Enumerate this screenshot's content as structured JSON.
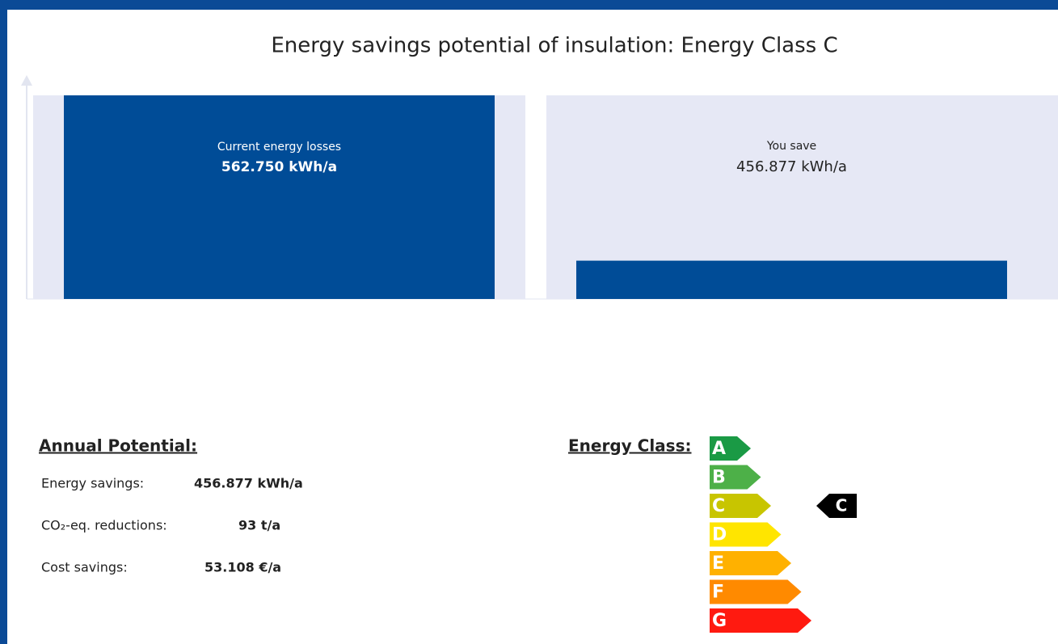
{
  "chart_data": {
    "type": "bar",
    "title": "Energy savings potential of insulation: Energy Class C",
    "values": [
      562750,
      105873
    ],
    "labels": [
      "Current energy losses",
      null
    ],
    "value_labels": [
      "562.750 kWh/a",
      null
    ],
    "color": "#004c97",
    "panel_color": "#e6e8f5",
    "ylim": [
      0,
      562750
    ],
    "savings": {
      "label": "You save",
      "value": 456877,
      "value_label": "456.877 kWh/a"
    }
  },
  "potential": {
    "title": "Annual Potential:",
    "rows": [
      [
        "Energy savings:",
        "456.877 kWh/a"
      ],
      [
        "CO₂-eq. reductions:",
        "93 t/a"
      ],
      [
        "Cost savings:",
        "53.108 €/a"
      ]
    ]
  },
  "energy_class": {
    "title": "Energy Class:",
    "classes": [
      {
        "label": "A",
        "color": "#1a9a45"
      },
      {
        "label": "B",
        "color": "#4db048"
      },
      {
        "label": "C",
        "color": "#c8c500"
      },
      {
        "label": "D",
        "color": "#ffe500"
      },
      {
        "label": "E",
        "color": "#ffb100"
      },
      {
        "label": "F",
        "color": "#ff8a00"
      },
      {
        "label": "G",
        "color": "#ff1a10"
      }
    ],
    "current": "C"
  }
}
